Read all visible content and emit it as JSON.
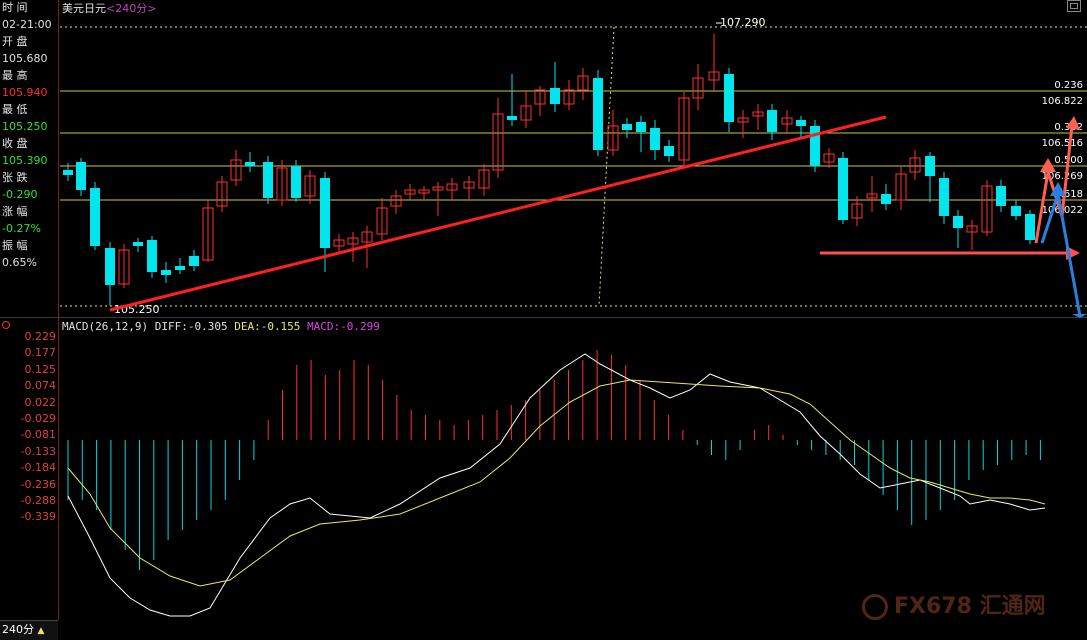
{
  "title": {
    "symbol": "美元日元",
    "period": "<240分>"
  },
  "sidebar": [
    {
      "label": "时 间",
      "value": "02-21:00",
      "color": "#e0e0e0"
    },
    {
      "label": "开 盘",
      "value": "105.680",
      "color": "#e0e0e0"
    },
    {
      "label": "最 高",
      "value": "105.940",
      "color": "#ff3030"
    },
    {
      "label": "最 低",
      "value": "105.250",
      "color": "#30e030"
    },
    {
      "label": "收 盘",
      "value": "105.390",
      "color": "#30e030"
    },
    {
      "label": "张 跌",
      "value": "-0.290",
      "color": "#30e030"
    },
    {
      "label": "涨 幅",
      "value": "-0.27%",
      "color": "#30e030"
    },
    {
      "label": "振 幅",
      "value": "0.65%",
      "color": "#e0e0e0"
    }
  ],
  "price_labels": {
    "high": "107.290",
    "low": "105.250"
  },
  "fib_levels": [
    {
      "ratio": "0.236",
      "price": "106.822"
    },
    {
      "ratio": "0.382",
      "price": "106.516"
    },
    {
      "ratio": "0.500",
      "price": "106.269"
    },
    {
      "ratio": "0.618",
      "price": "106.022"
    }
  ],
  "macd": {
    "name": "MACD(26,12,9)",
    "diff": "DIFF:-0.305",
    "dea": "DEA:-0.155",
    "macd": "MACD:-0.299",
    "ticks": [
      "0.229",
      "0.177",
      "0.125",
      "0.074",
      "0.022",
      "-0.029",
      "-0.081",
      "-0.133",
      "-0.184",
      "-0.236",
      "-0.288",
      "-0.339"
    ]
  },
  "period_button": "240分",
  "watermark": "FX678 汇通网",
  "colors": {
    "up": "#ff3030",
    "down": "#00e5ee",
    "fib": "#e8e860",
    "trend": "#ff2020",
    "diff": "#ffffff",
    "dea": "#e8e860"
  }
}
